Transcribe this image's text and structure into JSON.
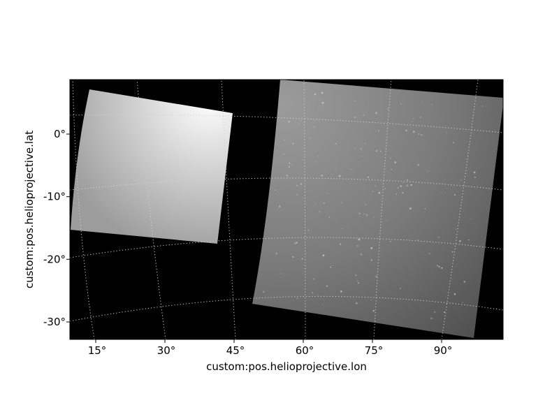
{
  "chart_data": {
    "type": "heatmap",
    "title": "",
    "projection": "helioprojective (curved WCS grid)",
    "xlabel": "custom:pos.helioprojective.lon",
    "ylabel": "custom:pos.helioprojective.lat",
    "xlim": [
      9.5,
      105
    ],
    "ylim": [
      -33,
      8.5
    ],
    "x_ticks": [
      {
        "value": 15,
        "label": "15°"
      },
      {
        "value": 30,
        "label": "30°"
      },
      {
        "value": 45,
        "label": "45°"
      },
      {
        "value": 60,
        "label": "60°"
      },
      {
        "value": 75,
        "label": "75°"
      },
      {
        "value": 90,
        "label": "90°"
      }
    ],
    "y_ticks": [
      {
        "value": 0,
        "label": "0°"
      },
      {
        "value": -10,
        "label": "-10°"
      },
      {
        "value": -20,
        "label": "-20°"
      },
      {
        "value": -30,
        "label": "-30°"
      }
    ],
    "colormap": "gray",
    "background_color": "#000000",
    "grid": {
      "on": true,
      "style": "dotted",
      "color": "#d0d0d0"
    },
    "images": [
      {
        "name": "bright-image",
        "corners_lon_lat": [
          [
            14,
            7
          ],
          [
            44.5,
            3.5
          ],
          [
            40.5,
            -17.5
          ],
          [
            9.5,
            -15.5
          ]
        ],
        "brightest_corner": "top-right",
        "gradient_colors": [
          "#ffffff",
          "#d2d2d2",
          "#9c9c9c"
        ]
      },
      {
        "name": "dim-image",
        "corners_lon_lat": [
          [
            56,
            8.5
          ],
          [
            105,
            5.5
          ],
          [
            97,
            -32.5
          ],
          [
            48.5,
            -27
          ]
        ],
        "brightest_corner": "top-left",
        "gradient_colors": [
          "#9b9b9b",
          "#7a7a7a",
          "#474747"
        ],
        "speckled": true
      }
    ]
  }
}
